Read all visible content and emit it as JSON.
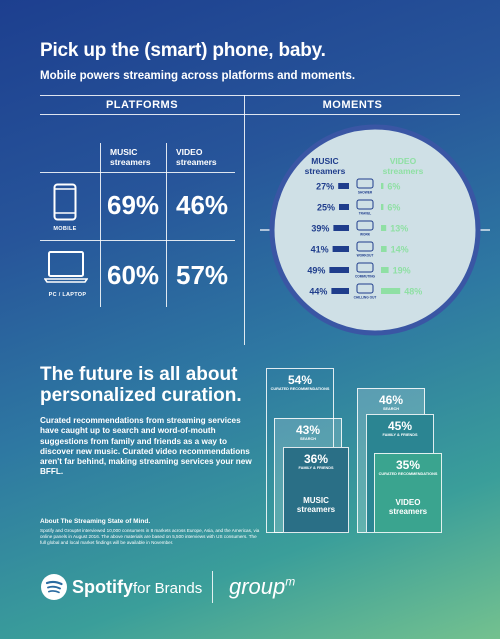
{
  "header": {
    "title": "Pick up the (smart) phone, baby.",
    "subtitle": "Mobile powers streaming across platforms and moments."
  },
  "platforms": {
    "heading": "PLATFORMS",
    "col_music": "MUSIC streamers",
    "col_music_l1": "MUSIC",
    "col_music_l2": "streamers",
    "col_video_l1": "VIDEO",
    "col_video_l2": "streamers",
    "rows": [
      {
        "label": "MOBILE",
        "music": "69%",
        "video": "46%"
      },
      {
        "label": "PC / LAPTOP",
        "music": "60%",
        "video": "57%"
      }
    ]
  },
  "moments": {
    "heading": "MOMENTS",
    "music_l1": "MUSIC",
    "music_l2": "streamers",
    "video_l1": "VIDEO",
    "video_l2": "streamers",
    "rows": [
      {
        "label": "SHOWER",
        "music": "27%",
        "video": "6%"
      },
      {
        "label": "TRAVEL",
        "music": "25%",
        "video": "6%"
      },
      {
        "label": "WORK",
        "music": "39%",
        "video": "13%"
      },
      {
        "label": "WORKOUT",
        "music": "41%",
        "video": "14%"
      },
      {
        "label": "COMMUTING",
        "music": "49%",
        "video": "19%"
      },
      {
        "label": "CHILLING OUT",
        "music": "44%",
        "video": "48%"
      }
    ]
  },
  "curation": {
    "heading_l1": "The future is all about",
    "heading_l2": "personalized curation.",
    "paragraph": "Curated recommendations from streaming services have caught up to search and word-of-mouth suggestions from family and friends as a way to discover new music. Curated video recommendations aren't far behind, making streaming services your new BFFL.",
    "music": {
      "foot_l1": "MUSIC",
      "foot_l2": "streamers",
      "items": [
        {
          "pct": "54%",
          "label": "CURATED RECOMMENDATIONS"
        },
        {
          "pct": "43%",
          "label": "SEARCH"
        },
        {
          "pct": "36%",
          "label": "FAMILY & FRIENDS"
        }
      ]
    },
    "video": {
      "foot_l1": "VIDEO",
      "foot_l2": "streamers",
      "items": [
        {
          "pct": "46%",
          "label": "SEARCH"
        },
        {
          "pct": "45%",
          "label": "FAMILY & FRIENDS"
        },
        {
          "pct": "35%",
          "label": "CURATED RECOMMENDATIONS"
        }
      ]
    }
  },
  "about": {
    "heading": "About The Streaming State of Mind.",
    "body": "Spotify and GroupM interviewed 10,000 consumers in 8 markets across Europe, Asia, and the Americas, via online panels in August 2016. The above materials are based on 5,500 interviews with US consumers. The full global and local market findings will be available in November."
  },
  "footer": {
    "spotify": "Spotify",
    "for_brands": "for Brands",
    "groupm": "group",
    "groupm_sup": "m"
  },
  "colors": {
    "music_bar": "#1f3d8c",
    "video_bar": "#8fe0a4",
    "circle_fill": "#cfe0e6",
    "circle_ring": "#3a56a4"
  },
  "chart_data": [
    {
      "type": "table",
      "title": "PLATFORMS",
      "columns": [
        "MUSIC streamers",
        "VIDEO streamers"
      ],
      "rows": [
        {
          "name": "MOBILE",
          "values": [
            69,
            46
          ]
        },
        {
          "name": "PC / LAPTOP",
          "values": [
            60,
            57
          ]
        }
      ]
    },
    {
      "type": "bar",
      "title": "MOMENTS",
      "categories": [
        "SHOWER",
        "TRAVEL",
        "WORK",
        "WORKOUT",
        "COMMUTING",
        "CHILLING OUT"
      ],
      "series": [
        {
          "name": "MUSIC streamers",
          "values": [
            27,
            25,
            39,
            41,
            49,
            44
          ]
        },
        {
          "name": "VIDEO streamers",
          "values": [
            6,
            6,
            13,
            14,
            19,
            48
          ]
        }
      ]
    },
    {
      "type": "bar",
      "categories": [
        "CURATED RECOMMENDATIONS",
        "SEARCH",
        "FAMILY & FRIENDS"
      ],
      "series": [
        {
          "name": "MUSIC streamers",
          "values": [
            54,
            43,
            36
          ]
        },
        {
          "name": "VIDEO streamers",
          "values": [
            35,
            46,
            45
          ]
        }
      ]
    }
  ]
}
